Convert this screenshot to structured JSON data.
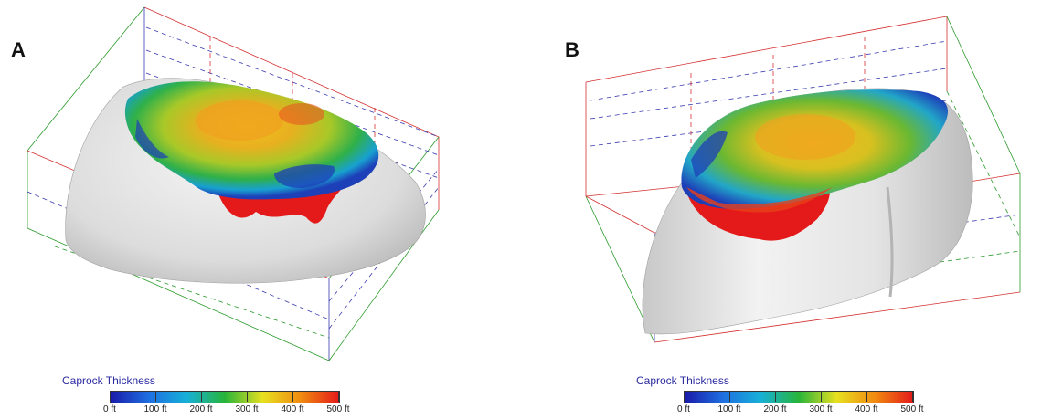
{
  "panels": [
    {
      "label": "A",
      "legend": {
        "title": "Caprock Thickness",
        "ticks": [
          "0 ft",
          "100 ft",
          "200 ft",
          "300 ft",
          "400 ft",
          "500 ft"
        ],
        "colors": [
          "#1a1aa8",
          "#1e6fe0",
          "#17b0d8",
          "#28b43a",
          "#e8e020",
          "#f08a10",
          "#e41a1a"
        ]
      }
    },
    {
      "label": "B",
      "legend": {
        "title": "Caprock Thickness",
        "ticks": [
          "0 ft",
          "100 ft",
          "200 ft",
          "300 ft",
          "400 ft",
          "500 ft"
        ],
        "colors": [
          "#1a1aa8",
          "#1e6fe0",
          "#17b0d8",
          "#28b43a",
          "#e8e020",
          "#f08a10",
          "#e41a1a"
        ]
      }
    }
  ]
}
